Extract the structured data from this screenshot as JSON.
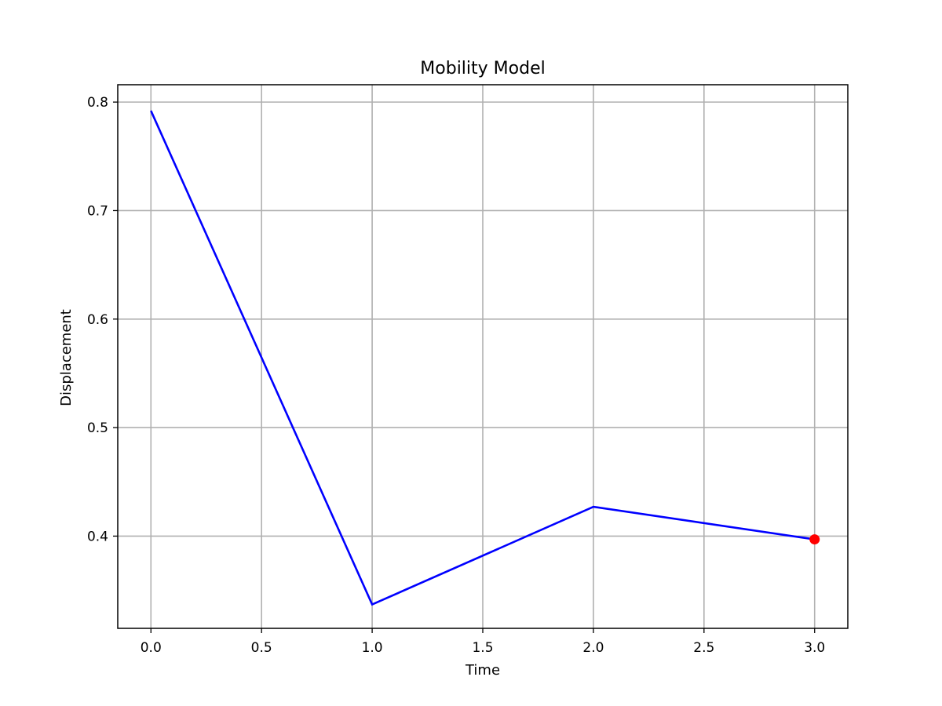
{
  "chart_data": {
    "type": "line",
    "title": "Mobility Model",
    "xlabel": "Time",
    "ylabel": "Displacement",
    "x": [
      0,
      1,
      2,
      3
    ],
    "series": [
      {
        "values": [
          0.792,
          0.337,
          0.427,
          0.397
        ],
        "color": "#0000ff"
      }
    ],
    "highlight_point": {
      "x": 3,
      "y": 0.397,
      "color": "#ff0000"
    },
    "xlim": [
      -0.15,
      3.15
    ],
    "ylim": [
      0.315,
      0.816
    ],
    "xticks": [
      "0.0",
      "0.5",
      "1.0",
      "1.5",
      "2.0",
      "2.5",
      "3.0"
    ],
    "xtick_values": [
      0,
      0.5,
      1,
      1.5,
      2,
      2.5,
      3
    ],
    "yticks": [
      "0.4",
      "0.5",
      "0.6",
      "0.7",
      "0.8"
    ],
    "ytick_values": [
      0.4,
      0.5,
      0.6,
      0.7,
      0.8
    ],
    "grid": true
  }
}
